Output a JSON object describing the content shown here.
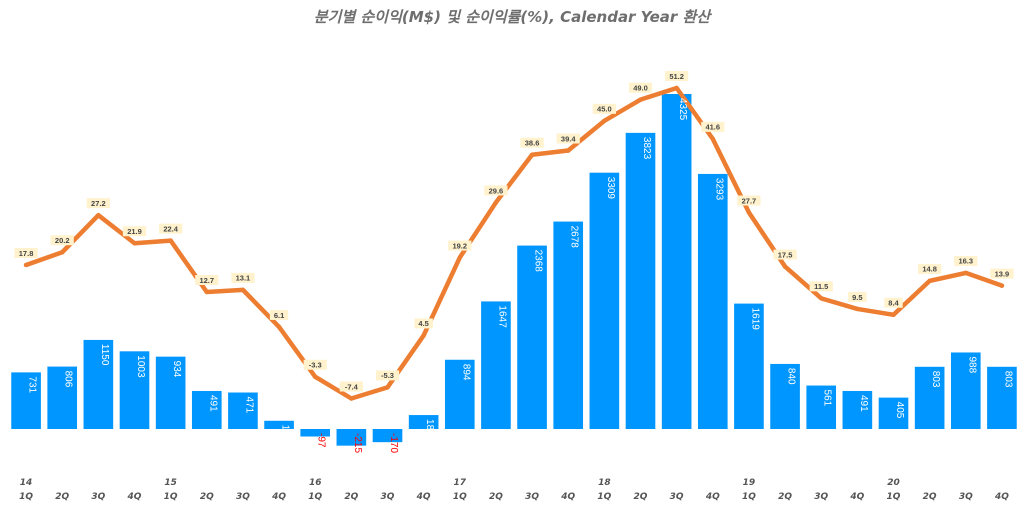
{
  "title": "분기별 순이익(M$) 및 순이익률(%), Calendar Year 환산",
  "colors": {
    "bar": "#0096FF",
    "line": "#ED7D31",
    "label_bg": "#FFF2CC",
    "negative_text": "#FF0000",
    "positive_text": "#FFFFFF"
  },
  "chart_data": {
    "type": "bar",
    "title": "분기별 순이익(M$) 및 순이익률(%), Calendar Year 환산",
    "categories": [
      "1Q",
      "2Q",
      "3Q",
      "4Q",
      "1Q",
      "2Q",
      "3Q",
      "4Q",
      "1Q",
      "2Q",
      "3Q",
      "4Q",
      "1Q",
      "2Q",
      "3Q",
      "4Q",
      "1Q",
      "2Q",
      "3Q",
      "4Q",
      "1Q",
      "2Q",
      "3Q",
      "4Q",
      "1Q",
      "2Q",
      "3Q",
      "4Q"
    ],
    "year_labels": [
      "14",
      "",
      "",
      "",
      "15",
      "",
      "",
      "",
      "16",
      "",
      "",
      "",
      "17",
      "",
      "",
      "",
      "18",
      "",
      "",
      "",
      "19",
      "",
      "",
      "",
      "20",
      "",
      "",
      ""
    ],
    "series": [
      {
        "values": [
          731,
          806,
          1150,
          1003,
          934,
          491,
          471,
          106,
          -97,
          -215,
          -170,
          180,
          894,
          1647,
          2368,
          2678,
          3309,
          3823,
          4325,
          3293,
          1619,
          840,
          561,
          491,
          405,
          803,
          988,
          803
        ]
      },
      {
        "values": [
          17.8,
          20.2,
          27.2,
          21.9,
          22.4,
          12.7,
          13.1,
          6.1,
          -3.3,
          -7.4,
          -5.3,
          4.5,
          19.2,
          29.6,
          38.6,
          39.4,
          45.0,
          49.0,
          51.2,
          41.6,
          27.7,
          17.5,
          11.5,
          9.5,
          8.4,
          14.8,
          16.3,
          13.9
        ]
      }
    ],
    "bar_labels": [
      "731",
      "806",
      "1150",
      "1003",
      "934",
      "491",
      "471",
      "106",
      "-97",
      "-215",
      "-170",
      "180",
      "894",
      "1647",
      "2368",
      "2678",
      "3309",
      "3823",
      "4325",
      "3293",
      "1619",
      "840",
      "561",
      "491",
      "405",
      "803",
      "988",
      "803"
    ],
    "line_labels": [
      "17.8",
      "20.2",
      "27.2",
      "21.9",
      "22.4",
      "12.7",
      "13.1",
      "6.1",
      "-3.3",
      "-7.4",
      "-5.3",
      "4.5",
      "19.2",
      "29.6",
      "38.6",
      "39.4",
      "45.0",
      "49.0",
      "51.2",
      "41.6",
      "27.7",
      "17.5",
      "11.5",
      "9.5",
      "8.4",
      "14.8",
      "16.3",
      "13.9"
    ],
    "bar_ylim": [
      -500,
      4500
    ],
    "line_ylim": [
      -18,
      72
    ],
    "grid": false,
    "legend": "none"
  }
}
